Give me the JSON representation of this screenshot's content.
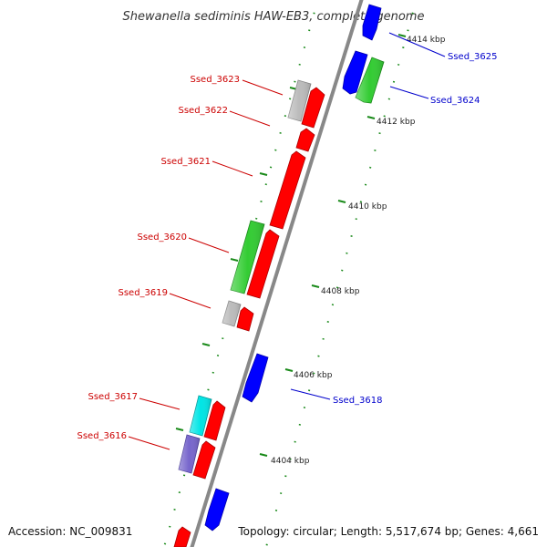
{
  "title": "Shewanella sediminis HAW-EB3, complete genome",
  "footer": {
    "accession": "Accession: NC_009831",
    "summary": "Topology: circular; Length: 5,517,674 bp; Genes: 4,661"
  },
  "colors": {
    "forward": "#ff0000",
    "reverse": "#0000ff",
    "green": "#33cc33",
    "grey": "#bbbbbb",
    "cyan": "#00e5e5",
    "purple": "#7766cc",
    "backbone": "#888888",
    "tick": "#1a8a1a",
    "label_forward": "#cc0000",
    "label_reverse": "#0000cc"
  },
  "kbp_labels": [
    "4414 kbp",
    "4412 kbp",
    "4410 kbp",
    "4408 kbp",
    "4406 kbp",
    "4404 kbp"
  ],
  "gene_labels": {
    "ssed_3625": "Ssed_3625",
    "ssed_3624": "Ssed_3624",
    "ssed_3623": "Ssed_3623",
    "ssed_3622": "Ssed_3622",
    "ssed_3621": "Ssed_3621",
    "ssed_3620": "Ssed_3620",
    "ssed_3619": "Ssed_3619",
    "ssed_3618": "Ssed_3618",
    "ssed_3617": "Ssed_3617",
    "ssed_3616": "Ssed_3616"
  }
}
